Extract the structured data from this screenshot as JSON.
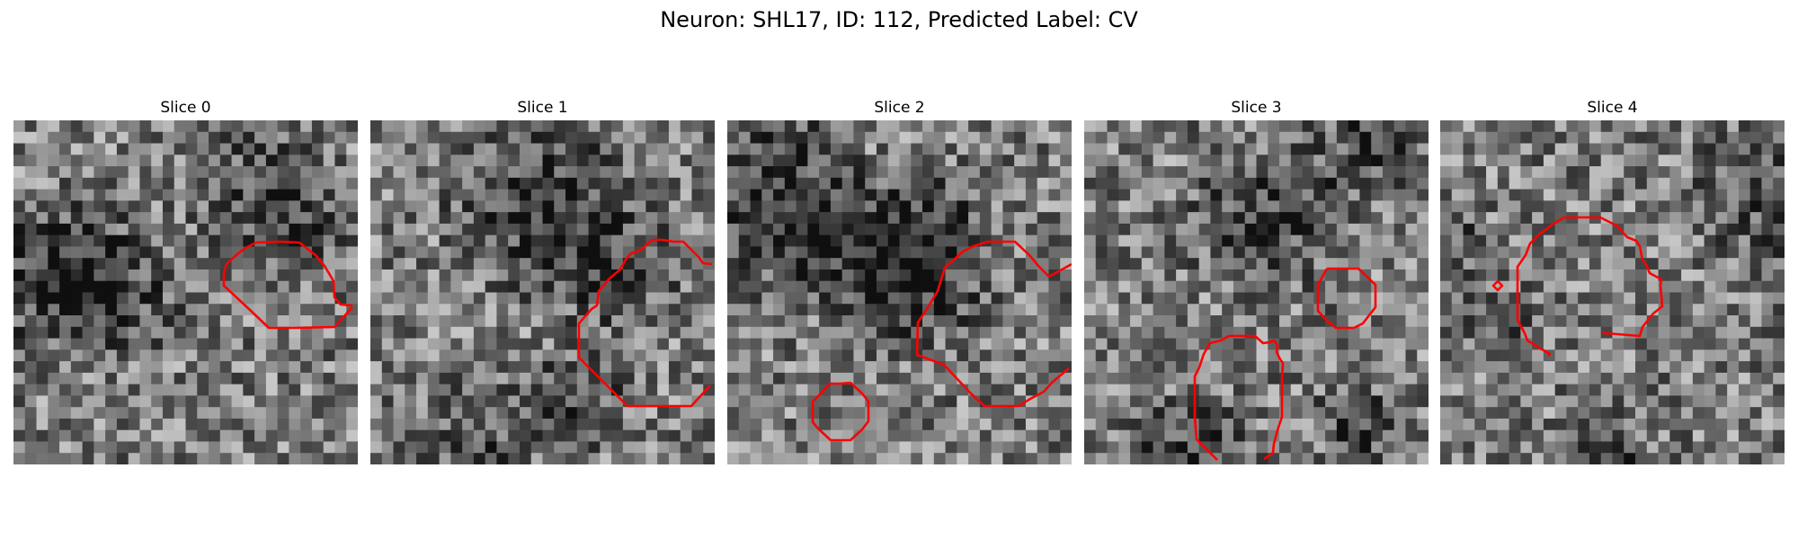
{
  "figure": {
    "title": "Neuron: SHL17, ID: 112, Predicted Label: CV"
  },
  "contour_color": "#ff0000",
  "colormap": "grayscale",
  "panels": [
    {
      "title": "Slice 0"
    },
    {
      "title": "Slice 1"
    },
    {
      "title": "Slice 2"
    },
    {
      "title": "Slice 3"
    },
    {
      "title": "Slice 4"
    }
  ]
}
